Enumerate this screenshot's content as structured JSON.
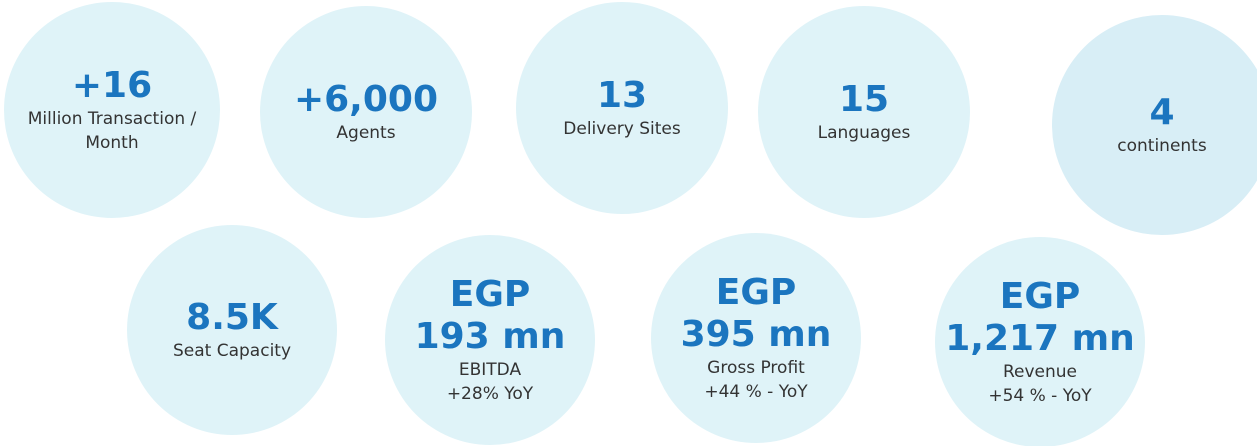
{
  "stats": [
    {
      "value": [
        "+16"
      ],
      "label": [
        "Million Transaction /",
        "Month"
      ]
    },
    {
      "value": [
        "+6,000"
      ],
      "label": [
        "Agents"
      ]
    },
    {
      "value": [
        "13"
      ],
      "label": [
        "Delivery Sites"
      ]
    },
    {
      "value": [
        "15"
      ],
      "label": [
        "Languages"
      ]
    },
    {
      "value": [
        "4"
      ],
      "label": [
        "continents"
      ]
    },
    {
      "value": [
        "8.5K"
      ],
      "label": [
        "Seat Capacity"
      ]
    },
    {
      "value": [
        "EGP",
        "193 mn"
      ],
      "label": [
        "EBITDA",
        "+28% YoY"
      ]
    },
    {
      "value": [
        "EGP",
        "395 mn"
      ],
      "label": [
        "Gross Profit",
        "+44 % - YoY"
      ]
    },
    {
      "value": [
        "EGP",
        "1,217 mn"
      ],
      "label": [
        "Revenue",
        "+54 % - YoY"
      ]
    }
  ]
}
